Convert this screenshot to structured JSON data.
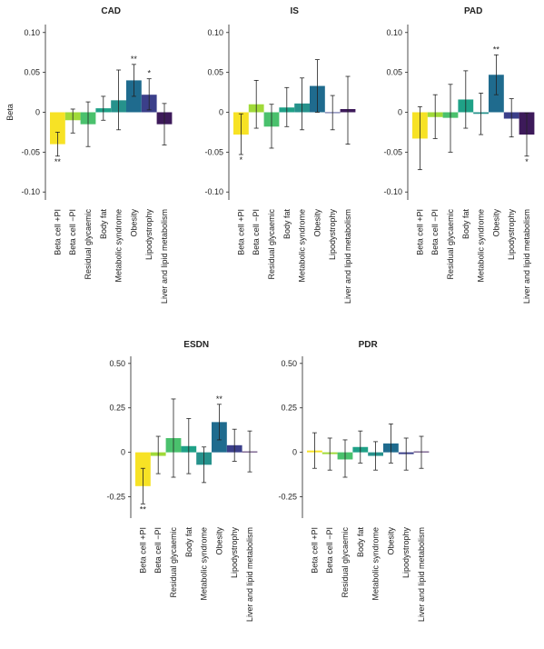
{
  "chart_data": [
    {
      "type": "bar",
      "title": "CAD",
      "ylabel": "Beta",
      "categories": [
        "Beta cell +PI",
        "Beta cell −PI",
        "Residual glycaemic",
        "Body fat",
        "Metabolic syndrome",
        "Obesity",
        "Lipodystrophy",
        "Liver and lipid metabolism"
      ],
      "colors": [
        "#f7e225",
        "#a0da39",
        "#4ac16d",
        "#1fa187",
        "#26928c",
        "#1f6b8e",
        "#3b3f8a",
        "#3d1a5a"
      ],
      "values": [
        -0.04,
        -0.01,
        -0.015,
        0.005,
        0.015,
        0.04,
        0.022,
        -0.015
      ],
      "ci_low": [
        -0.055,
        -0.026,
        -0.043,
        -0.01,
        -0.022,
        0.02,
        0.003,
        -0.041
      ],
      "ci_high": [
        -0.025,
        0.004,
        0.013,
        0.02,
        0.053,
        0.06,
        0.042,
        0.011
      ],
      "sig": [
        "**",
        null,
        null,
        null,
        null,
        "**",
        "*",
        null
      ],
      "ylim": [
        -0.11,
        0.11
      ],
      "yticks": [
        {
          "value": 0.1,
          "label": "0.10"
        },
        0.05,
        0,
        -0.05,
        {
          "value": -0.1,
          "label": "-0.10"
        }
      ]
    },
    {
      "type": "bar",
      "title": "IS",
      "categories": [
        "Beta cell +PI",
        "Beta cell −PI",
        "Residual glycaemic",
        "Body fat",
        "Metabolic syndrome",
        "Obesity",
        "Lipodystrophy",
        "Liver and lipid metabolism"
      ],
      "colors": [
        "#f7e225",
        "#a0da39",
        "#4ac16d",
        "#1fa187",
        "#26928c",
        "#1f6b8e",
        "#3b3f8a",
        "#3d1a5a"
      ],
      "values": [
        -0.028,
        0.01,
        -0.018,
        0.006,
        0.011,
        0.033,
        -0.001,
        0.004
      ],
      "ci_low": [
        -0.053,
        -0.02,
        -0.045,
        -0.018,
        -0.022,
        0.0,
        -0.022,
        -0.04
      ],
      "ci_high": [
        -0.002,
        0.04,
        0.01,
        0.031,
        0.043,
        0.066,
        0.021,
        0.045
      ],
      "sig": [
        "*",
        null,
        null,
        null,
        null,
        null,
        null,
        null
      ],
      "ylim": [
        -0.11,
        0.11
      ],
      "yticks": [
        {
          "value": 0.1,
          "label": "0.10"
        },
        0.05,
        0,
        -0.05,
        {
          "value": -0.1,
          "label": "-0.10"
        }
      ]
    },
    {
      "type": "bar",
      "title": "PAD",
      "categories": [
        "Beta cell +PI",
        "Beta cell −PI",
        "Residual glycaemic",
        "Body fat",
        "Metabolic syndrome",
        "Obesity",
        "Lipodystrophy",
        "Liver and lipid metabolism"
      ],
      "colors": [
        "#f7e225",
        "#a0da39",
        "#4ac16d",
        "#1fa187",
        "#26928c",
        "#1f6b8e",
        "#3b3f8a",
        "#3d1a5a"
      ],
      "values": [
        -0.033,
        -0.006,
        -0.007,
        0.016,
        -0.002,
        0.047,
        -0.008,
        -0.028
      ],
      "ci_low": [
        -0.072,
        -0.033,
        -0.05,
        -0.02,
        -0.028,
        0.022,
        -0.031,
        -0.055
      ],
      "ci_high": [
        0.007,
        0.022,
        0.035,
        0.052,
        0.024,
        0.072,
        0.017,
        -0.001
      ],
      "sig": [
        null,
        null,
        null,
        null,
        null,
        "**",
        null,
        "*"
      ],
      "ylim": [
        -0.11,
        0.11
      ],
      "yticks": [
        {
          "value": 0.1,
          "label": "0.10"
        },
        0.05,
        0,
        -0.05,
        {
          "value": -0.1,
          "label": "-0.10"
        }
      ]
    },
    {
      "type": "bar",
      "title": "ESDN",
      "categories": [
        "Beta cell +PI",
        "Beta cell −PI",
        "Residual glycaemic",
        "Body fat",
        "Metabolic syndrome",
        "Obesity",
        "Lipodystrophy",
        "Liver and lipid metabolism"
      ],
      "colors": [
        "#f7e225",
        "#a0da39",
        "#4ac16d",
        "#1fa187",
        "#26928c",
        "#1f6b8e",
        "#3b3f8a",
        "#3d1a5a"
      ],
      "values": [
        -0.19,
        -0.02,
        0.08,
        0.035,
        -0.07,
        0.17,
        0.04,
        0.005
      ],
      "ci_low": [
        -0.29,
        -0.12,
        -0.14,
        -0.12,
        -0.17,
        0.07,
        -0.05,
        -0.11
      ],
      "ci_high": [
        -0.09,
        0.09,
        0.3,
        0.19,
        0.03,
        0.27,
        0.13,
        0.12
      ],
      "sig": [
        "**",
        null,
        null,
        null,
        null,
        "**",
        null,
        null
      ],
      "ylim": [
        -0.37,
        0.54
      ],
      "yticks": [
        {
          "value": 0.5,
          "label": "0.50"
        },
        0.25,
        0,
        -0.25
      ]
    },
    {
      "type": "bar",
      "title": "PDR",
      "categories": [
        "Beta cell +PI",
        "Beta cell −PI",
        "Residual glycaemic",
        "Body fat",
        "Metabolic syndrome",
        "Obesity",
        "Lipodystrophy",
        "Liver and lipid metabolism"
      ],
      "colors": [
        "#f7e225",
        "#a0da39",
        "#4ac16d",
        "#1fa187",
        "#26928c",
        "#1f6b8e",
        "#3b3f8a",
        "#3d1a5a"
      ],
      "values": [
        0.01,
        -0.01,
        -0.04,
        0.03,
        -0.02,
        0.05,
        -0.01,
        0.005
      ],
      "ci_low": [
        -0.09,
        -0.1,
        -0.14,
        -0.06,
        -0.1,
        -0.06,
        -0.1,
        -0.09
      ],
      "ci_high": [
        0.11,
        0.08,
        0.07,
        0.12,
        0.06,
        0.16,
        0.08,
        0.09
      ],
      "sig": [
        null,
        null,
        null,
        null,
        null,
        null,
        null,
        null
      ],
      "ylim": [
        -0.37,
        0.54
      ],
      "yticks": [
        {
          "value": 0.5,
          "label": "0.50"
        },
        0.25,
        0,
        -0.25
      ]
    }
  ]
}
